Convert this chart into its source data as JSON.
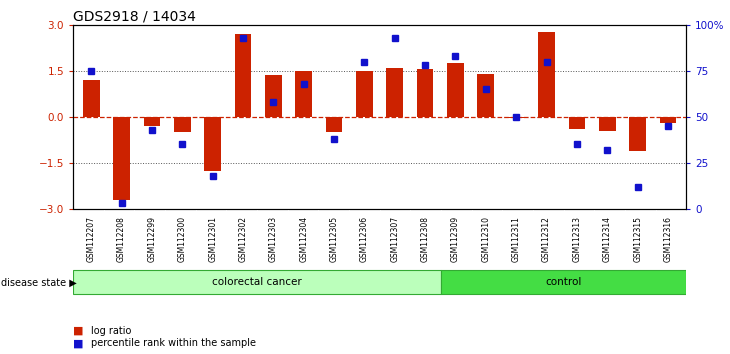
{
  "title": "GDS2918 / 14034",
  "samples": [
    "GSM112207",
    "GSM112208",
    "GSM112299",
    "GSM112300",
    "GSM112301",
    "GSM112302",
    "GSM112303",
    "GSM112304",
    "GSM112305",
    "GSM112306",
    "GSM112307",
    "GSM112308",
    "GSM112309",
    "GSM112310",
    "GSM112311",
    "GSM112312",
    "GSM112313",
    "GSM112314",
    "GSM112315",
    "GSM112316"
  ],
  "log_ratio": [
    1.2,
    -2.7,
    -0.3,
    -0.5,
    -1.75,
    2.7,
    1.35,
    1.5,
    -0.5,
    1.5,
    1.6,
    1.55,
    1.75,
    1.4,
    -0.05,
    2.75,
    -0.4,
    -0.45,
    -1.1,
    -0.2
  ],
  "percentile": [
    75,
    3,
    43,
    35,
    18,
    93,
    58,
    68,
    38,
    80,
    93,
    78,
    83,
    65,
    50,
    80,
    35,
    32,
    12,
    45
  ],
  "colorectal_count": 12,
  "control_count": 8,
  "ylim_left": [
    -3,
    3
  ],
  "ylim_right": [
    0,
    100
  ],
  "yticks_left": [
    -3,
    -1.5,
    0,
    1.5,
    3
  ],
  "yticks_right": [
    0,
    25,
    50,
    75,
    100
  ],
  "bar_color": "#cc2200",
  "dot_color": "#1111cc",
  "hline_color_zero": "#cc2200",
  "hline_color_ref": "#555555",
  "colorectal_color": "#bbffbb",
  "control_color": "#44dd44",
  "tick_bg_color": "#c8c8c8",
  "disease_label": "disease state",
  "colorectal_label": "colorectal cancer",
  "control_label": "control",
  "legend_bar": "log ratio",
  "legend_dot": "percentile rank within the sample",
  "bar_width": 0.55,
  "title_fontsize": 10
}
